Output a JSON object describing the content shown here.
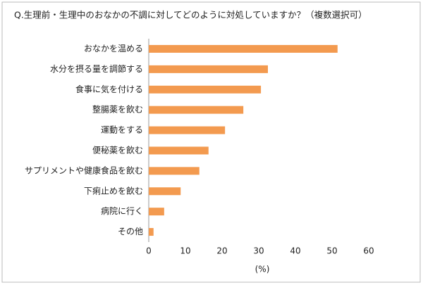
{
  "chart_data": {
    "type": "bar",
    "orientation": "horizontal",
    "title": "Q.生理前・生理中のおなかの不調に対してどのように対処していますか？（複数選択可）",
    "x_label": "(%)",
    "categories": [
      "おなかを温める",
      "水分を摂る量を調節する",
      "食事に気を付ける",
      "整腸薬を飲む",
      "運動をする",
      "便秘薬を飲む",
      "サプリメントや健康食品を飲む",
      "下痢止めを飲む",
      "病院に行く",
      "その他"
    ],
    "values": [
      51.5,
      32.5,
      30.6,
      25.8,
      20.8,
      16.3,
      13.8,
      8.7,
      4.2,
      1.3
    ],
    "color": "#f39a4f",
    "xlim": [
      0,
      60
    ],
    "xticks": [
      0,
      10,
      20,
      30,
      40,
      50,
      60
    ],
    "grid": false
  }
}
